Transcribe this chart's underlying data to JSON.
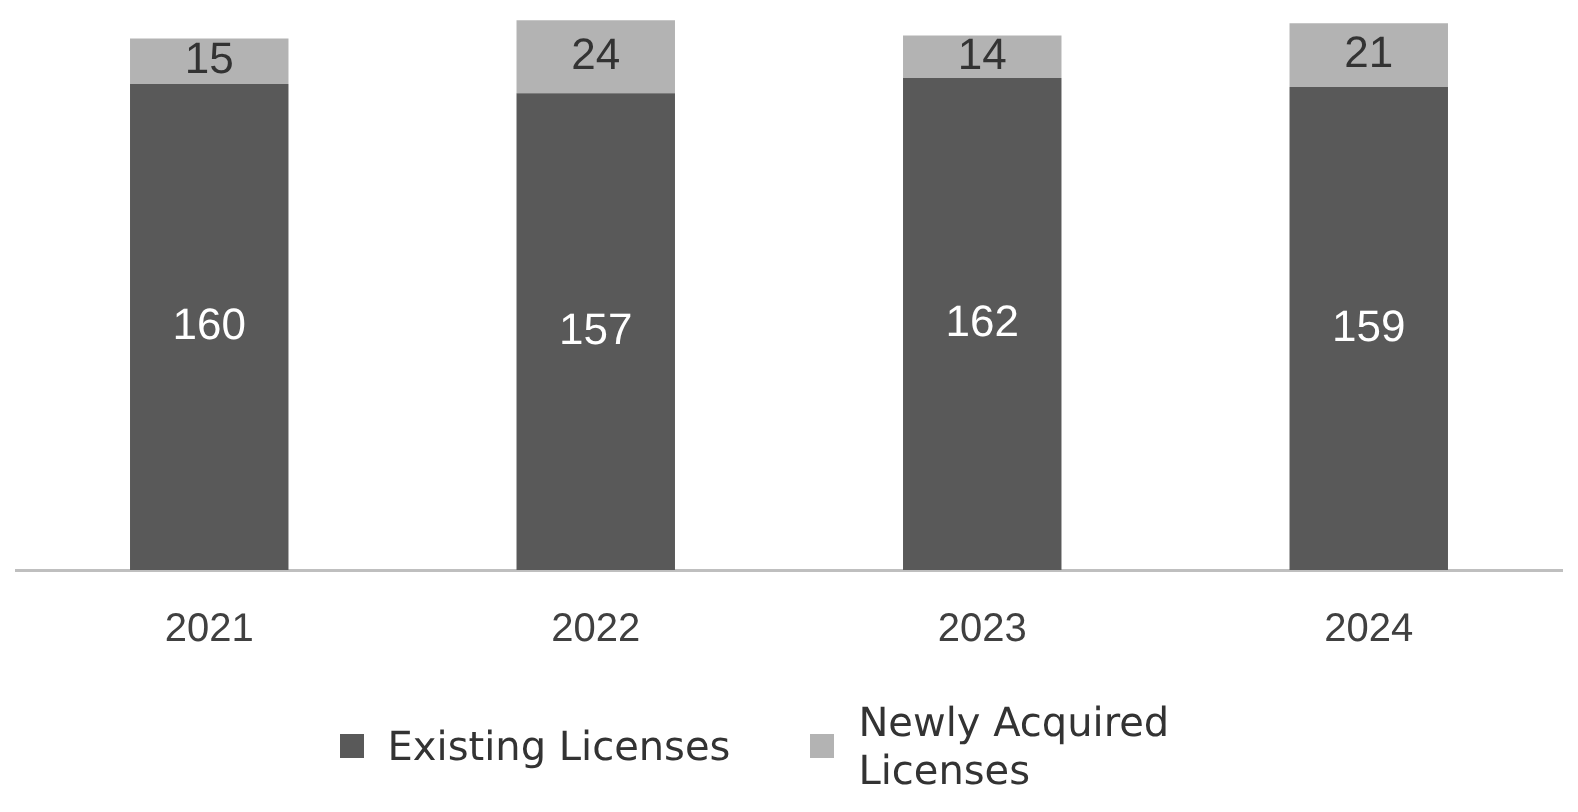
{
  "chart_data": {
    "type": "bar",
    "stacked": true,
    "categories": [
      "2021",
      "2022",
      "2023",
      "2024"
    ],
    "series": [
      {
        "name": "Existing Licenses",
        "color": "#595959",
        "values": [
          160,
          157,
          162,
          159
        ]
      },
      {
        "name": "Newly Acquired Licenses",
        "color": "#b3b3b3",
        "values": [
          15,
          24,
          14,
          21
        ]
      }
    ],
    "data_labels": true,
    "legend": "bottom",
    "grid": false
  }
}
